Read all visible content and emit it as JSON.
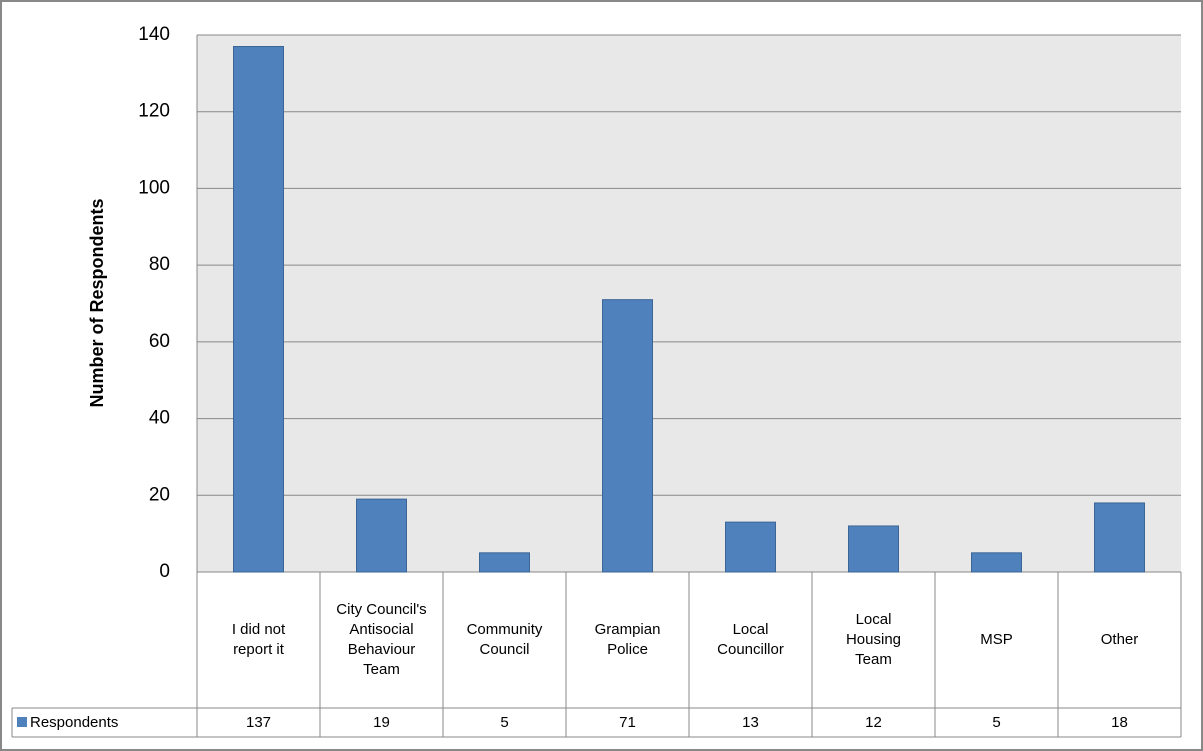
{
  "chart_data": {
    "type": "bar",
    "y_label": "Number of Respondents",
    "categories": [
      "I did not report it",
      "City Council's Antisocial Behaviour Team",
      "Community Council",
      "Grampian Police",
      "Local Councillor",
      "Local Housing Team",
      "MSP",
      "Other"
    ],
    "series": [
      {
        "name": "Respondents",
        "color": "#4f81bd",
        "values": [
          137,
          19,
          5,
          71,
          13,
          12,
          5,
          18
        ]
      }
    ],
    "ylim": [
      0,
      140
    ],
    "yticks": [
      0,
      20,
      40,
      60,
      80,
      100,
      120,
      140
    ],
    "grid": true
  }
}
